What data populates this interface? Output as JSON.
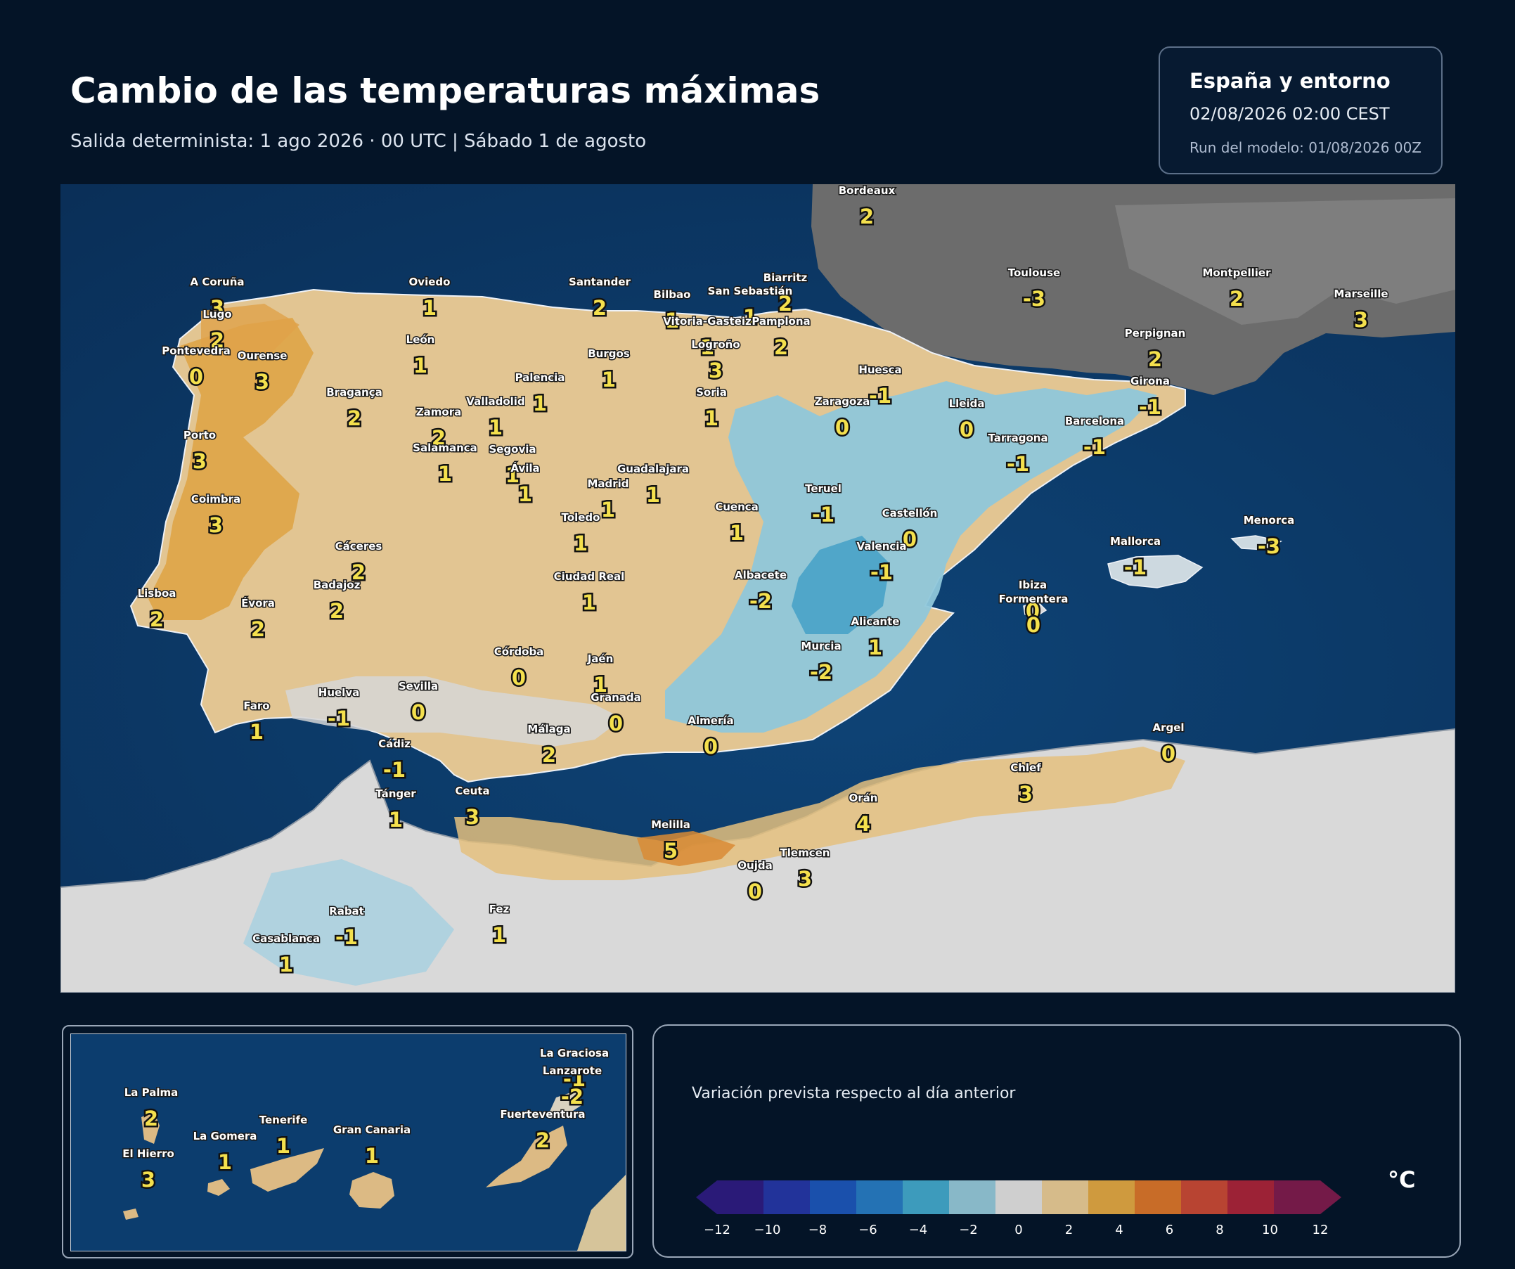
{
  "header": {
    "title": "Cambio de las temperaturas máximas",
    "subtitle": "Salida determinista: 1 ago 2026 · 00 UTC  |  Sábado 1 de agosto"
  },
  "info": {
    "region": "España y entorno",
    "valid": "02/08/2026  02:00 CEST",
    "run": "Run del modelo: 01/08/2026 00Z"
  },
  "map_stations": [
    {
      "name": "Bordeaux",
      "value": "2"
    },
    {
      "name": "Toulouse",
      "value": "-3"
    },
    {
      "name": "Montpellier",
      "value": "2"
    },
    {
      "name": "Marseille",
      "value": "3"
    },
    {
      "name": "Perpignan",
      "value": "2"
    },
    {
      "name": "Biarritz",
      "value": "2"
    },
    {
      "name": "San Sebastián",
      "value": "1"
    },
    {
      "name": "Bilbao",
      "value": "1"
    },
    {
      "name": "Vitoria-Gasteiz",
      "value": "1"
    },
    {
      "name": "Pamplona",
      "value": "2"
    },
    {
      "name": "Logroño",
      "value": "3"
    },
    {
      "name": "Santander",
      "value": "2"
    },
    {
      "name": "Oviedo",
      "value": "1"
    },
    {
      "name": "A Coruña",
      "value": "3"
    },
    {
      "name": "Lugo",
      "value": "2"
    },
    {
      "name": "Pontevedra",
      "value": "0"
    },
    {
      "name": "Ourense",
      "value": "3"
    },
    {
      "name": "León",
      "value": "1"
    },
    {
      "name": "Burgos",
      "value": "1"
    },
    {
      "name": "Palencia",
      "value": "1"
    },
    {
      "name": "Soria",
      "value": "1"
    },
    {
      "name": "Huesca",
      "value": "-1"
    },
    {
      "name": "Girona",
      "value": "-1"
    },
    {
      "name": "Lleida",
      "value": "0"
    },
    {
      "name": "Zaragoza",
      "value": "0"
    },
    {
      "name": "Barcelona",
      "value": "-1"
    },
    {
      "name": "Tarragona",
      "value": "-1"
    },
    {
      "name": "Bragança",
      "value": "2"
    },
    {
      "name": "Zamora",
      "value": "2"
    },
    {
      "name": "Valladolid",
      "value": "1"
    },
    {
      "name": "Porto",
      "value": "3"
    },
    {
      "name": "Salamanca",
      "value": "1"
    },
    {
      "name": "Segovia",
      "value": "1"
    },
    {
      "name": "Ávila",
      "value": "1"
    },
    {
      "name": "Guadalajara",
      "value": "1"
    },
    {
      "name": "Madrid",
      "value": "1"
    },
    {
      "name": "Coimbra",
      "value": "3"
    },
    {
      "name": "Teruel",
      "value": "-1"
    },
    {
      "name": "Cuenca",
      "value": "1"
    },
    {
      "name": "Toledo",
      "value": "1"
    },
    {
      "name": "Castellón",
      "value": "0"
    },
    {
      "name": "Valencia",
      "value": "-1"
    },
    {
      "name": "Cáceres",
      "value": "2"
    },
    {
      "name": "Menorca",
      "value": "-3"
    },
    {
      "name": "Mallorca",
      "value": "-1"
    },
    {
      "name": "Ciudad Real",
      "value": "1"
    },
    {
      "name": "Albacete",
      "value": "-2"
    },
    {
      "name": "Badajoz",
      "value": "2"
    },
    {
      "name": "Lisboa",
      "value": "2"
    },
    {
      "name": "Évora",
      "value": "2"
    },
    {
      "name": "Ibiza",
      "value": "0"
    },
    {
      "name": "Formentera",
      "value": "0"
    },
    {
      "name": "Alicante",
      "value": "1"
    },
    {
      "name": "Murcia",
      "value": "-2"
    },
    {
      "name": "Córdoba",
      "value": "0"
    },
    {
      "name": "Jaén",
      "value": "1"
    },
    {
      "name": "Sevilla",
      "value": "0"
    },
    {
      "name": "Huelva",
      "value": "-1"
    },
    {
      "name": "Granada",
      "value": "0"
    },
    {
      "name": "Faro",
      "value": "1"
    },
    {
      "name": "Almería",
      "value": "0"
    },
    {
      "name": "Málaga",
      "value": "2"
    },
    {
      "name": "Cádiz",
      "value": "-1"
    },
    {
      "name": "Argel",
      "value": "0"
    },
    {
      "name": "Chlef",
      "value": "3"
    },
    {
      "name": "Tánger",
      "value": "1"
    },
    {
      "name": "Ceuta",
      "value": "3"
    },
    {
      "name": "Orán",
      "value": "4"
    },
    {
      "name": "Melilla",
      "value": "5"
    },
    {
      "name": "Tlemcen",
      "value": "3"
    },
    {
      "name": "Oujda",
      "value": "0"
    },
    {
      "name": "Rabat",
      "value": "-1"
    },
    {
      "name": "Fez",
      "value": "1"
    },
    {
      "name": "Casablanca",
      "value": "1"
    }
  ],
  "canarias_stations": [
    {
      "name": "La Graciosa",
      "value": "-1"
    },
    {
      "name": "Lanzarote",
      "value": "-2"
    },
    {
      "name": "La Palma",
      "value": "2"
    },
    {
      "name": "Fuerteventura",
      "value": "2"
    },
    {
      "name": "Tenerife",
      "value": "1"
    },
    {
      "name": "Gran Canaria",
      "value": "1"
    },
    {
      "name": "La Gomera",
      "value": "1"
    },
    {
      "name": "El Hierro",
      "value": "3"
    }
  ],
  "legend": {
    "caption": "Variación prevista respecto al día anterior",
    "unit": "°C",
    "ticks": [
      "−12",
      "−10",
      "−8",
      "−6",
      "−4",
      "−2",
      "0",
      "2",
      "4",
      "6",
      "8",
      "10",
      "12"
    ],
    "colors": [
      "#2a1a78",
      "#22339a",
      "#1a50ac",
      "#2472b4",
      "#3d9bbc",
      "#88b8c8",
      "#cfcfcf",
      "#d6bb8a",
      "#cf9a3e",
      "#c86c28",
      "#b84432",
      "#9c2236",
      "#741a48"
    ]
  },
  "colors": {
    "background": "#041427",
    "sea": "#0d3a6a",
    "land_warm": "#e4c48d",
    "land_hot": "#dfa24a",
    "land_cool": "#8fc4d8",
    "land_neutral": "#d8d8d8",
    "france": "#727272",
    "label_value": "#f4e04d"
  }
}
